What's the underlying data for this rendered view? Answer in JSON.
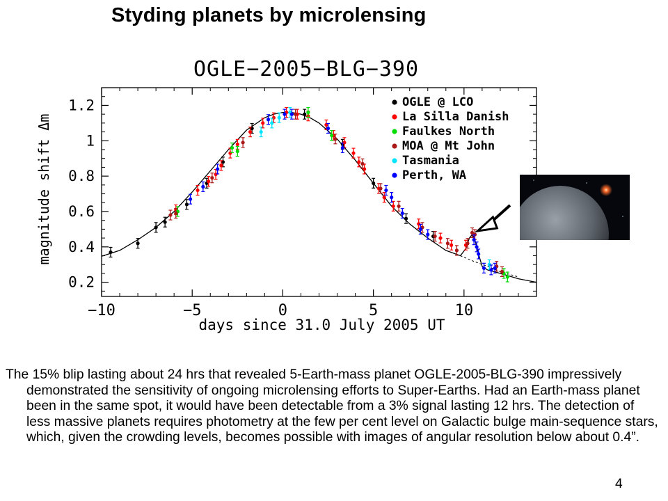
{
  "slide": {
    "title": "Styding planets by microlensing",
    "body": "The 15% blip lasting about 24 hrs that revealed 5-Earth-mass planet OGLE-2005-BLG-390 impressively demonstrated the sensitivity of ongoing microlensing efforts to Super-Earths. Had an Earth-mass planet been in the same spot, it would have been detectable from a 3% signal lasting 12 hrs. The detection of less massive planets requires photometry at the few per cent level on Galactic bulge main-sequence stars, which, given the crowding levels, becomes possible with images of angular resolution below about 0.4”.",
    "page_number": "4"
  },
  "chart_data": {
    "type": "scatter",
    "title": "OGLE−2005−BLG−390",
    "xlabel": "days since 31.0 July 2005 UT",
    "ylabel": "magnitude shift Δm",
    "xlim": [
      -10,
      14
    ],
    "ylim": [
      0.12,
      1.3
    ],
    "x_ticks": [
      -10,
      -5,
      0,
      5,
      10
    ],
    "x_tick_labels": [
      "−10",
      "−5",
      "0",
      "5",
      "10"
    ],
    "y_ticks": [
      0.2,
      0.4,
      0.6,
      0.8,
      1,
      1.2
    ],
    "y_tick_labels": [
      "0.2",
      "0.4",
      "0.6",
      "0.8",
      "1",
      "1.2"
    ],
    "grid": false,
    "legend_position": "top-right",
    "model_curve": {
      "x": [
        -10.5,
        -9,
        -8,
        -7,
        -6,
        -5,
        -4,
        -3,
        -2,
        -1,
        -0.5,
        0,
        0.5,
        1,
        1.5,
        2,
        3,
        4,
        5,
        6,
        7,
        8,
        9,
        9.8,
        10.1,
        10.3,
        10.45,
        10.6,
        10.8,
        11,
        11.3,
        12,
        13,
        14
      ],
      "y": [
        0.33,
        0.38,
        0.44,
        0.51,
        0.6,
        0.71,
        0.83,
        0.95,
        1.06,
        1.13,
        1.15,
        1.16,
        1.16,
        1.15,
        1.13,
        1.1,
        1.01,
        0.89,
        0.76,
        0.63,
        0.53,
        0.45,
        0.38,
        0.35,
        0.39,
        0.45,
        0.47,
        0.44,
        0.36,
        0.29,
        0.27,
        0.25,
        0.22,
        0.2
      ]
    },
    "dashed_curve": {
      "x": [
        9.8,
        10.5,
        11.3,
        12,
        13
      ],
      "y": [
        0.35,
        0.32,
        0.29,
        0.26,
        0.23
      ]
    },
    "series": [
      {
        "name": "OGLE @ LCO",
        "color": "#000000",
        "x": [
          -9.5,
          -8,
          -7,
          -6.5,
          -5.3,
          -4.2,
          -3.3,
          -1.7,
          1.2,
          3.3,
          5,
          6.8,
          8.3
        ],
        "y": [
          0.37,
          0.42,
          0.51,
          0.54,
          0.64,
          0.76,
          0.88,
          1.07,
          1.15,
          0.98,
          0.76,
          0.56,
          0.46
        ]
      },
      {
        "name": "La Silla Danish",
        "color": "#ff0000",
        "x": [
          -5.9,
          -4.7,
          -4.1,
          -3.7,
          -3.4,
          -2.9,
          -2.5,
          -1.8,
          -1.1,
          -0.5,
          0.2,
          0.8,
          1.4,
          2.4,
          2.8,
          3.4,
          3.9,
          4.2,
          4.5,
          5.3,
          5.6,
          6.1,
          7.5,
          8.7,
          9.3,
          10.1
        ],
        "y": [
          0.61,
          0.72,
          0.77,
          0.81,
          0.86,
          0.93,
          0.98,
          1.05,
          1.1,
          1.13,
          1.16,
          1.15,
          1.14,
          1.09,
          1.03,
          0.99,
          0.93,
          0.88,
          0.84,
          0.73,
          0.68,
          0.63,
          0.53,
          0.45,
          0.41,
          0.41
        ]
      },
      {
        "name": "Faulkes North",
        "color": "#00dd00",
        "x": [
          -5.8,
          -2.8,
          -2.5,
          1.4,
          2.7,
          12.2,
          12.4
        ],
        "y": [
          0.6,
          0.96,
          0.94,
          1.16,
          1.03,
          0.25,
          0.23
        ]
      },
      {
        "name": "MOA @ Mt John",
        "color": "#aa1818",
        "x": [
          -6.2,
          -5.9,
          -3.9,
          -2.2,
          0.7,
          2.9,
          4.4,
          5.4,
          6.4,
          7.7,
          8.4,
          9.1,
          9.6,
          10.2,
          10.45,
          10.6,
          11.8,
          12.1
        ],
        "y": [
          0.58,
          0.59,
          0.79,
          0.99,
          1.15,
          1.01,
          0.87,
          0.73,
          0.63,
          0.51,
          0.46,
          0.42,
          0.38,
          0.42,
          0.48,
          0.47,
          0.29,
          0.26
        ]
      },
      {
        "name": "Tasmania",
        "color": "#00e5ff",
        "x": [
          -1.2,
          -0.6,
          -0.2,
          0.4,
          11.4
        ],
        "y": [
          1.05,
          1.1,
          1.13,
          1.16,
          0.3
        ]
      },
      {
        "name": "Perth, WA",
        "color": "#0000ff",
        "x": [
          -5.1,
          -4.4,
          -3.6,
          -0.8,
          0.1,
          0.5,
          2.5,
          3.3,
          5.7,
          6,
          6.6,
          7.6,
          8,
          10.55,
          10.7,
          10.8,
          11.1,
          11.5,
          11.7
        ],
        "y": [
          0.67,
          0.74,
          0.84,
          1.12,
          1.15,
          1.15,
          1.07,
          0.96,
          0.72,
          0.68,
          0.59,
          0.5,
          0.47,
          0.44,
          0.4,
          0.36,
          0.28,
          0.27,
          0.28
        ]
      }
    ]
  }
}
